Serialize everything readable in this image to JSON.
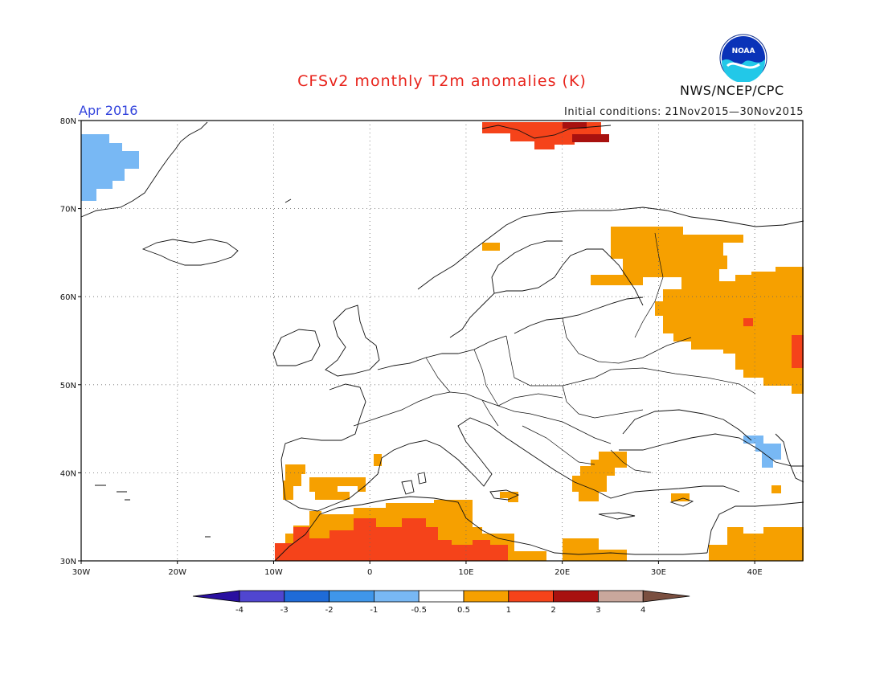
{
  "header": {
    "title": "CFSv2 monthly T2m anomalies (K)",
    "month": "Apr 2016",
    "initial_conditions": "Initial conditions: 21Nov2015—30Nov2015",
    "agency": "NWS/NCEP/CPC",
    "logo_text": "NOAA"
  },
  "map": {
    "lon_range": [
      -30,
      45
    ],
    "lat_range": [
      30,
      80
    ],
    "lon_ticks": [
      {
        "value": -30,
        "label": "30W"
      },
      {
        "value": -20,
        "label": "20W"
      },
      {
        "value": -10,
        "label": "10W"
      },
      {
        "value": 0,
        "label": "0"
      },
      {
        "value": 10,
        "label": "10E"
      },
      {
        "value": 20,
        "label": "20E"
      },
      {
        "value": 30,
        "label": "30E"
      },
      {
        "value": 40,
        "label": "40E"
      }
    ],
    "lat_ticks": [
      {
        "value": 30,
        "label": "30N"
      },
      {
        "value": 40,
        "label": "40N"
      },
      {
        "value": 50,
        "label": "50N"
      },
      {
        "value": 60,
        "label": "60N"
      },
      {
        "value": 70,
        "label": "70N"
      },
      {
        "value": 80,
        "label": "80N"
      }
    ],
    "gridlines": true
  },
  "colorbar": {
    "colors": [
      "#2a10a0",
      "#5046d0",
      "#1f6bd8",
      "#3f96ea",
      "#78b8f4",
      "#ffffff",
      "#f6a000",
      "#f5431a",
      "#a8110f",
      "#c9a79c",
      "#7a4f40"
    ],
    "labels": [
      "-4",
      "-3",
      "-2",
      "-1",
      "-0.5",
      "0.5",
      "1",
      "2",
      "3",
      "4"
    ]
  }
}
